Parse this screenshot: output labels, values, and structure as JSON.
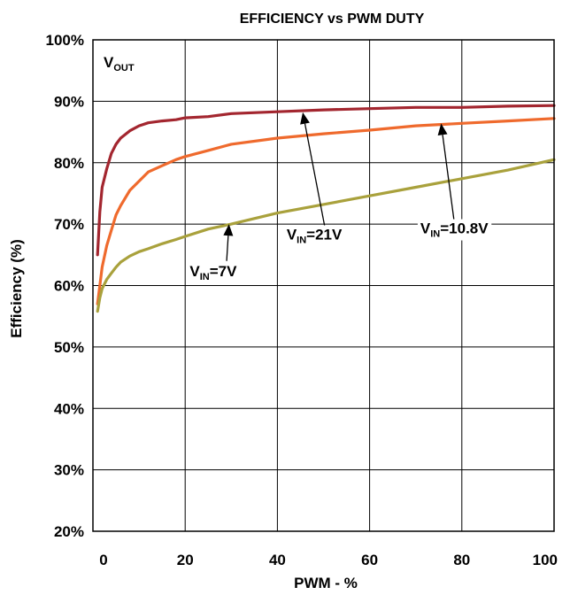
{
  "chart_data": {
    "type": "line",
    "title": "EFFICIENCY vs PWM DUTY",
    "xlabel": "PWM - %",
    "ylabel": "Efficiency (%)",
    "xlim": [
      0,
      100
    ],
    "ylim": [
      20,
      100
    ],
    "x_ticks": [
      "0",
      "20",
      "40",
      "60",
      "80",
      "100"
    ],
    "y_ticks": [
      "20%",
      "30%",
      "40%",
      "50%",
      "60%",
      "70%",
      "80%",
      "90%",
      "100%"
    ],
    "grid": true,
    "corner_label": {
      "main": "V",
      "sub": "OUT"
    },
    "series": [
      {
        "color": "#a3262f",
        "x": [
          1,
          1.5,
          2,
          3,
          4,
          5,
          6,
          8,
          10,
          12,
          15,
          18,
          20,
          25,
          30,
          40,
          50,
          60,
          70,
          80,
          90,
          100
        ],
        "y": [
          65,
          72,
          76,
          79,
          81.5,
          83,
          84,
          85.2,
          86,
          86.5,
          86.8,
          87,
          87.3,
          87.5,
          88,
          88.3,
          88.6,
          88.8,
          89,
          89,
          89.2,
          89.3
        ]
      },
      {
        "color": "#ef6a2d",
        "x": [
          1,
          1.5,
          2,
          3,
          4,
          5,
          6,
          8,
          10,
          12,
          15,
          18,
          20,
          25,
          30,
          40,
          50,
          60,
          70,
          80,
          90,
          100
        ],
        "y": [
          57,
          60,
          63,
          66.5,
          69,
          71.5,
          73,
          75.5,
          77,
          78.5,
          79.5,
          80.5,
          81,
          82,
          83,
          84,
          84.7,
          85.3,
          86,
          86.4,
          86.8,
          87.2
        ]
      },
      {
        "color": "#a9a13c",
        "x": [
          1,
          1.5,
          2,
          3,
          4,
          5,
          6,
          8,
          10,
          12,
          15,
          18,
          20,
          25,
          30,
          40,
          50,
          60,
          70,
          80,
          90,
          100
        ],
        "y": [
          55.8,
          58,
          59.5,
          61,
          62,
          63,
          63.8,
          64.8,
          65.5,
          66,
          66.8,
          67.5,
          68,
          69.2,
          70,
          71.8,
          73.2,
          74.6,
          76,
          77.4,
          78.8,
          80.5
        ]
      }
    ],
    "annotations": [
      {
        "main": "V",
        "sub": "IN",
        "tail": "=7V",
        "text_x": 21,
        "text_y": 61.5,
        "arrow_from": [
          29,
          64
        ],
        "arrow_to": [
          29.5,
          70
        ]
      },
      {
        "main": "V",
        "sub": "IN",
        "tail": "=21V",
        "text_x": 42,
        "text_y": 67.5,
        "arrow_from": [
          50.5,
          68.7
        ],
        "arrow_to": [
          45.5,
          88.2
        ]
      },
      {
        "main": "V",
        "sub": "IN",
        "tail": "=10.8V",
        "text_x": 71,
        "text_y": 68.5,
        "arrow_from": [
          78.5,
          69.5
        ],
        "arrow_to": [
          75.5,
          86.4
        ]
      }
    ]
  }
}
